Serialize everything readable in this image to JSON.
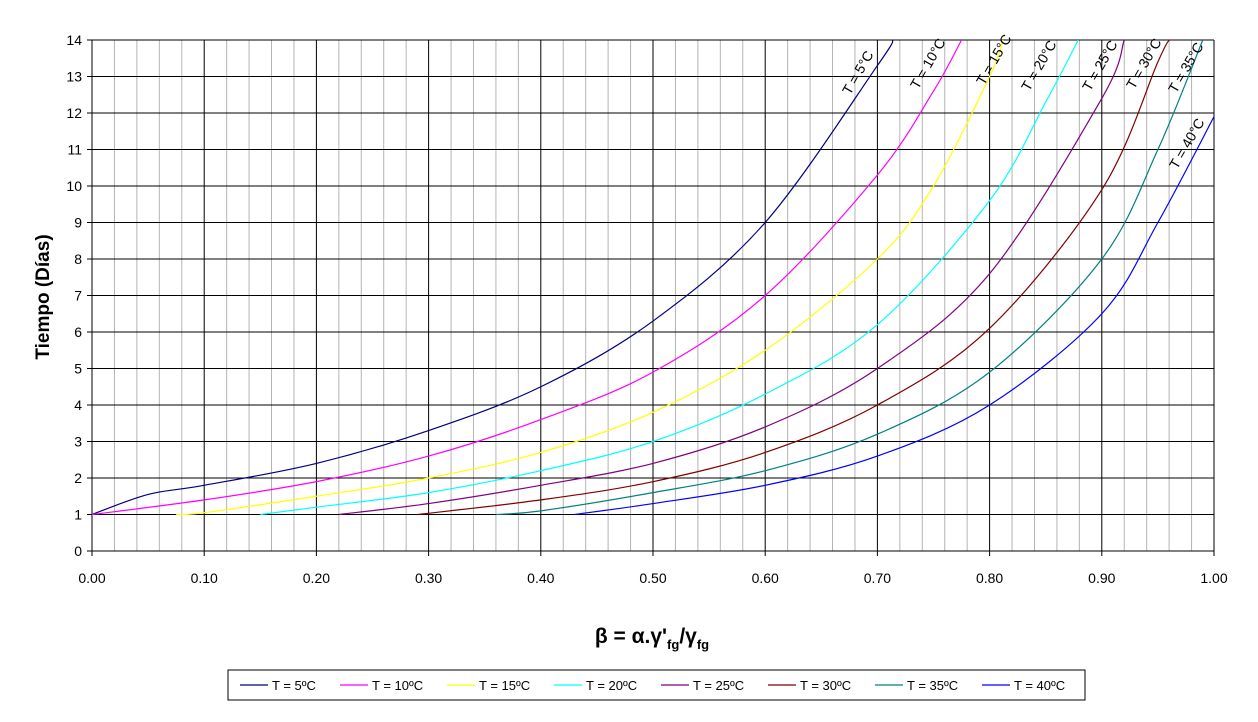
{
  "chart_data": {
    "type": "line",
    "title": "",
    "xlabel": "β = α.γ'fg/γfg",
    "xlabel_parts": {
      "main": "β = α.γ'",
      "sub1": "fg",
      "mid": "/γ",
      "sub2": "fg"
    },
    "ylabel": "Tiempo (Días)",
    "xlim": [
      0,
      1
    ],
    "ylim": [
      0,
      14
    ],
    "x_ticks": [
      "0.00",
      "0.10",
      "0.20",
      "0.30",
      "0.40",
      "0.50",
      "0.60",
      "0.70",
      "0.80",
      "0.90",
      "1.00"
    ],
    "y_ticks": [
      "0",
      "1",
      "2",
      "3",
      "4",
      "5",
      "6",
      "7",
      "8",
      "9",
      "10",
      "11",
      "12",
      "13",
      "14"
    ],
    "grid": true,
    "legend_position": "bottom",
    "series": [
      {
        "name": "T = 5ºC",
        "label": "T = 5°C",
        "color": "#000080",
        "x": [
          0,
          0.05,
          0.1,
          0.2,
          0.3,
          0.4,
          0.5,
          0.6,
          0.7,
          0.714
        ],
        "y": [
          1,
          1.55,
          1.8,
          2.4,
          3.3,
          4.5,
          6.3,
          9.0,
          13.3,
          14
        ]
      },
      {
        "name": "T = 10ºC",
        "label": "T = 10°C",
        "color": "#ff00ff",
        "x": [
          0,
          0.1,
          0.2,
          0.3,
          0.4,
          0.5,
          0.6,
          0.7,
          0.75,
          0.775
        ],
        "y": [
          1,
          1.4,
          1.9,
          2.6,
          3.6,
          4.9,
          7.0,
          10.3,
          12.6,
          14
        ]
      },
      {
        "name": "T = 15ºC",
        "label": "T = 15°C",
        "color": "#ffff00",
        "x": [
          0.075,
          0.1,
          0.2,
          0.3,
          0.4,
          0.5,
          0.6,
          0.7,
          0.75,
          0.8,
          0.812
        ],
        "y": [
          1,
          1.05,
          1.5,
          2.0,
          2.7,
          3.8,
          5.5,
          8.0,
          10.0,
          13.0,
          14
        ]
      },
      {
        "name": "T = 20ºC",
        "label": "T = 20°C",
        "color": "#00ffff",
        "x": [
          0.15,
          0.2,
          0.3,
          0.4,
          0.5,
          0.6,
          0.7,
          0.8,
          0.85,
          0.879
        ],
        "y": [
          1,
          1.2,
          1.6,
          2.2,
          3.0,
          4.3,
          6.2,
          9.6,
          12.3,
          14
        ]
      },
      {
        "name": "T = 25ºC",
        "label": "T = 25°C",
        "color": "#800080",
        "x": [
          0.22,
          0.3,
          0.4,
          0.5,
          0.6,
          0.7,
          0.8,
          0.9,
          0.92
        ],
        "y": [
          1,
          1.3,
          1.8,
          2.4,
          3.4,
          5.0,
          7.6,
          12.4,
          14
        ]
      },
      {
        "name": "T = 30ºC",
        "label": "T = 30°C",
        "color": "#800000",
        "x": [
          0.29,
          0.4,
          0.5,
          0.6,
          0.7,
          0.8,
          0.9,
          0.95,
          0.96
        ],
        "y": [
          1,
          1.4,
          1.9,
          2.7,
          4.0,
          6.1,
          9.9,
          13.4,
          14
        ]
      },
      {
        "name": "T = 35ºC",
        "label": "T = 35°C",
        "color": "#008080",
        "x": [
          0.36,
          0.4,
          0.5,
          0.6,
          0.7,
          0.8,
          0.9,
          0.95,
          0.99
        ],
        "y": [
          1,
          1.1,
          1.6,
          2.2,
          3.2,
          4.9,
          8.0,
          11.0,
          14
        ]
      },
      {
        "name": "T = 40ºC",
        "label": "T = 40°C",
        "color": "#0000ff",
        "x": [
          0.43,
          0.5,
          0.6,
          0.7,
          0.8,
          0.9,
          0.95,
          1.0
        ],
        "y": [
          1,
          1.3,
          1.8,
          2.6,
          4.0,
          6.5,
          9.0,
          11.9
        ]
      }
    ]
  }
}
